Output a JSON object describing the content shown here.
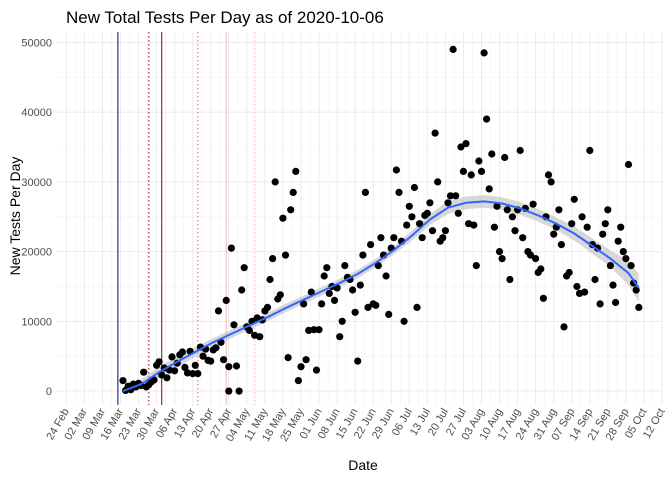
{
  "chart_data": {
    "type": "scatter",
    "title": "New Total Tests Per Day as of 2020-10-06",
    "xlabel": "Date",
    "ylabel": "New Tests Per Day",
    "xlim": [
      "2020-02-20",
      "2020-10-12"
    ],
    "ylim": [
      -2000,
      51500
    ],
    "grid": true,
    "legend": "none",
    "x_ticks": [
      {
        "date": "2020-02-24",
        "label": "24 Feb"
      },
      {
        "date": "2020-03-02",
        "label": "02 Mar"
      },
      {
        "date": "2020-03-09",
        "label": "09 Mar"
      },
      {
        "date": "2020-03-16",
        "label": "16 Mar"
      },
      {
        "date": "2020-03-23",
        "label": "23 Mar"
      },
      {
        "date": "2020-03-30",
        "label": "30 Mar"
      },
      {
        "date": "2020-04-06",
        "label": "06 Apr"
      },
      {
        "date": "2020-04-13",
        "label": "13 Apr"
      },
      {
        "date": "2020-04-20",
        "label": "20 Apr"
      },
      {
        "date": "2020-04-27",
        "label": "27 Apr"
      },
      {
        "date": "2020-05-04",
        "label": "04 May"
      },
      {
        "date": "2020-05-11",
        "label": "11 May"
      },
      {
        "date": "2020-05-18",
        "label": "18 May"
      },
      {
        "date": "2020-05-25",
        "label": "25 May"
      },
      {
        "date": "2020-06-01",
        "label": "01 Jun"
      },
      {
        "date": "2020-06-08",
        "label": "08 Jun"
      },
      {
        "date": "2020-06-15",
        "label": "15 Jun"
      },
      {
        "date": "2020-06-22",
        "label": "22 Jun"
      },
      {
        "date": "2020-06-29",
        "label": "29 Jun"
      },
      {
        "date": "2020-07-06",
        "label": "06 Jul"
      },
      {
        "date": "2020-07-13",
        "label": "13 Jul"
      },
      {
        "date": "2020-07-20",
        "label": "20 Jul"
      },
      {
        "date": "2020-07-27",
        "label": "27 Jul"
      },
      {
        "date": "2020-08-03",
        "label": "03 Aug"
      },
      {
        "date": "2020-08-10",
        "label": "10 Aug"
      },
      {
        "date": "2020-08-17",
        "label": "17 Aug"
      },
      {
        "date": "2020-08-24",
        "label": "24 Aug"
      },
      {
        "date": "2020-08-31",
        "label": "31 Aug"
      },
      {
        "date": "2020-09-07",
        "label": "07 Sep"
      },
      {
        "date": "2020-09-14",
        "label": "14 Sep"
      },
      {
        "date": "2020-09-21",
        "label": "21 Sep"
      },
      {
        "date": "2020-09-28",
        "label": "28 Sep"
      },
      {
        "date": "2020-10-05",
        "label": "05 Oct"
      },
      {
        "date": "2020-10-12",
        "label": "12 Oct"
      }
    ],
    "y_ticks": [
      {
        "value": 0,
        "label": "0"
      },
      {
        "value": 10000,
        "label": "10000"
      },
      {
        "value": 20000,
        "label": "20000"
      },
      {
        "value": 30000,
        "label": "30000"
      },
      {
        "value": 40000,
        "label": "40000"
      },
      {
        "value": 50000,
        "label": "50000"
      }
    ],
    "vlines": [
      {
        "date": "2020-03-15",
        "color": "#00008b",
        "style": "solid"
      },
      {
        "date": "2020-03-27",
        "color": "#8b0000",
        "style": "dotted"
      },
      {
        "date": "2020-04-01",
        "color": "#8b0000",
        "style": "solid"
      },
      {
        "date": "2020-04-15",
        "color": "#e06060",
        "style": "dotted"
      },
      {
        "date": "2020-04-26",
        "color": "#f2b8b8",
        "style": "solid"
      },
      {
        "date": "2020-05-07",
        "color": "#f2b8b8",
        "style": "dotted"
      }
    ],
    "points": [
      [
        "2020-03-17",
        1500
      ],
      [
        "2020-03-18",
        100
      ],
      [
        "2020-03-19",
        700
      ],
      [
        "2020-03-20",
        200
      ],
      [
        "2020-03-21",
        1000
      ],
      [
        "2020-03-22",
        600
      ],
      [
        "2020-03-23",
        1100
      ],
      [
        "2020-03-24",
        800
      ],
      [
        "2020-03-25",
        2700
      ],
      [
        "2020-03-26",
        600
      ],
      [
        "2020-03-27",
        900
      ],
      [
        "2020-03-28",
        1300
      ],
      [
        "2020-03-29",
        1600
      ],
      [
        "2020-03-30",
        3700
      ],
      [
        "2020-03-31",
        4200
      ],
      [
        "2020-04-01",
        2300
      ],
      [
        "2020-04-02",
        3300
      ],
      [
        "2020-04-03",
        1900
      ],
      [
        "2020-04-04",
        3000
      ],
      [
        "2020-04-05",
        4900
      ],
      [
        "2020-04-06",
        2900
      ],
      [
        "2020-04-07",
        4000
      ],
      [
        "2020-04-08",
        5200
      ],
      [
        "2020-04-09",
        5600
      ],
      [
        "2020-04-10",
        3400
      ],
      [
        "2020-04-11",
        2600
      ],
      [
        "2020-04-12",
        5700
      ],
      [
        "2020-04-13",
        2500
      ],
      [
        "2020-04-14",
        3700
      ],
      [
        "2020-04-15",
        2500
      ],
      [
        "2020-04-16",
        6300
      ],
      [
        "2020-04-17",
        5000
      ],
      [
        "2020-04-18",
        6000
      ],
      [
        "2020-04-19",
        4400
      ],
      [
        "2020-04-20",
        4300
      ],
      [
        "2020-04-21",
        5900
      ],
      [
        "2020-04-22",
        6200
      ],
      [
        "2020-04-23",
        11500
      ],
      [
        "2020-04-24",
        7000
      ],
      [
        "2020-04-25",
        4500
      ],
      [
        "2020-04-26",
        13000
      ],
      [
        "2020-04-27",
        0
      ],
      [
        "2020-04-27",
        3500
      ],
      [
        "2020-04-28",
        20500
      ],
      [
        "2020-04-29",
        9500
      ],
      [
        "2020-04-30",
        3600
      ],
      [
        "2020-05-01",
        0
      ],
      [
        "2020-05-02",
        14500
      ],
      [
        "2020-05-03",
        17700
      ],
      [
        "2020-05-04",
        9200
      ],
      [
        "2020-05-05",
        8700
      ],
      [
        "2020-05-06",
        10000
      ],
      [
        "2020-05-07",
        8000
      ],
      [
        "2020-05-08",
        10500
      ],
      [
        "2020-05-09",
        7800
      ],
      [
        "2020-05-10",
        10200
      ],
      [
        "2020-05-11",
        11500
      ],
      [
        "2020-05-12",
        12000
      ],
      [
        "2020-05-13",
        16000
      ],
      [
        "2020-05-14",
        19000
      ],
      [
        "2020-05-15",
        30000
      ],
      [
        "2020-05-16",
        13200
      ],
      [
        "2020-05-17",
        13800
      ],
      [
        "2020-05-18",
        24800
      ],
      [
        "2020-05-19",
        19500
      ],
      [
        "2020-05-20",
        4800
      ],
      [
        "2020-05-21",
        26000
      ],
      [
        "2020-05-22",
        28500
      ],
      [
        "2020-05-23",
        31500
      ],
      [
        "2020-05-24",
        1500
      ],
      [
        "2020-05-25",
        3500
      ],
      [
        "2020-05-26",
        12500
      ],
      [
        "2020-05-27",
        4500
      ],
      [
        "2020-05-28",
        8700
      ],
      [
        "2020-05-29",
        14200
      ],
      [
        "2020-05-30",
        8800
      ],
      [
        "2020-05-31",
        3000
      ],
      [
        "2020-06-01",
        8800
      ],
      [
        "2020-06-02",
        12500
      ],
      [
        "2020-06-03",
        16500
      ],
      [
        "2020-06-04",
        17700
      ],
      [
        "2020-06-05",
        14000
      ],
      [
        "2020-06-06",
        15000
      ],
      [
        "2020-06-07",
        13000
      ],
      [
        "2020-06-08",
        14800
      ],
      [
        "2020-06-09",
        7800
      ],
      [
        "2020-06-10",
        10000
      ],
      [
        "2020-06-11",
        18000
      ],
      [
        "2020-06-12",
        16300
      ],
      [
        "2020-06-13",
        16000
      ],
      [
        "2020-06-14",
        14500
      ],
      [
        "2020-06-15",
        11300
      ],
      [
        "2020-06-16",
        4300
      ],
      [
        "2020-06-17",
        15200
      ],
      [
        "2020-06-18",
        19500
      ],
      [
        "2020-06-19",
        28500
      ],
      [
        "2020-06-20",
        12000
      ],
      [
        "2020-06-21",
        21000
      ],
      [
        "2020-06-22",
        12500
      ],
      [
        "2020-06-23",
        12300
      ],
      [
        "2020-06-24",
        18000
      ],
      [
        "2020-06-25",
        22000
      ],
      [
        "2020-06-26",
        19500
      ],
      [
        "2020-06-27",
        16500
      ],
      [
        "2020-06-28",
        11000
      ],
      [
        "2020-06-29",
        20500
      ],
      [
        "2020-06-30",
        22000
      ],
      [
        "2020-07-01",
        31700
      ],
      [
        "2020-07-02",
        28500
      ],
      [
        "2020-07-03",
        21500
      ],
      [
        "2020-07-04",
        10000
      ],
      [
        "2020-07-05",
        23800
      ],
      [
        "2020-07-06",
        26500
      ],
      [
        "2020-07-07",
        25000
      ],
      [
        "2020-07-08",
        29200
      ],
      [
        "2020-07-09",
        12000
      ],
      [
        "2020-07-10",
        24000
      ],
      [
        "2020-07-11",
        22000
      ],
      [
        "2020-07-12",
        25200
      ],
      [
        "2020-07-13",
        25500
      ],
      [
        "2020-07-14",
        27000
      ],
      [
        "2020-07-15",
        23000
      ],
      [
        "2020-07-16",
        37000
      ],
      [
        "2020-07-17",
        30000
      ],
      [
        "2020-07-18",
        21500
      ],
      [
        "2020-07-19",
        22000
      ],
      [
        "2020-07-20",
        23000
      ],
      [
        "2020-07-21",
        27000
      ],
      [
        "2020-07-22",
        28000
      ],
      [
        "2020-07-23",
        49000
      ],
      [
        "2020-07-24",
        28000
      ],
      [
        "2020-07-25",
        25500
      ],
      [
        "2020-07-26",
        35000
      ],
      [
        "2020-07-27",
        31500
      ],
      [
        "2020-07-28",
        35500
      ],
      [
        "2020-07-29",
        24000
      ],
      [
        "2020-07-30",
        31000
      ],
      [
        "2020-07-31",
        23800
      ],
      [
        "2020-08-01",
        18000
      ],
      [
        "2020-08-02",
        33000
      ],
      [
        "2020-08-03",
        31500
      ],
      [
        "2020-08-04",
        48500
      ],
      [
        "2020-08-05",
        39000
      ],
      [
        "2020-08-06",
        29000
      ],
      [
        "2020-08-07",
        34000
      ],
      [
        "2020-08-08",
        23500
      ],
      [
        "2020-08-09",
        26500
      ],
      [
        "2020-08-10",
        20000
      ],
      [
        "2020-08-11",
        19000
      ],
      [
        "2020-08-12",
        33500
      ],
      [
        "2020-08-13",
        26000
      ],
      [
        "2020-08-14",
        16000
      ],
      [
        "2020-08-15",
        25000
      ],
      [
        "2020-08-16",
        23000
      ],
      [
        "2020-08-17",
        26000
      ],
      [
        "2020-08-18",
        34500
      ],
      [
        "2020-08-19",
        22000
      ],
      [
        "2020-08-20",
        26200
      ],
      [
        "2020-08-21",
        20000
      ],
      [
        "2020-08-22",
        19500
      ],
      [
        "2020-08-23",
        26800
      ],
      [
        "2020-08-24",
        19000
      ],
      [
        "2020-08-25",
        17000
      ],
      [
        "2020-08-26",
        17500
      ],
      [
        "2020-08-27",
        13300
      ],
      [
        "2020-08-28",
        25000
      ],
      [
        "2020-08-29",
        31000
      ],
      [
        "2020-08-30",
        30000
      ],
      [
        "2020-08-31",
        22500
      ],
      [
        "2020-09-01",
        23500
      ],
      [
        "2020-09-02",
        26000
      ],
      [
        "2020-09-03",
        21000
      ],
      [
        "2020-09-04",
        9200
      ],
      [
        "2020-09-05",
        16500
      ],
      [
        "2020-09-06",
        17000
      ],
      [
        "2020-09-07",
        24000
      ],
      [
        "2020-09-08",
        27500
      ],
      [
        "2020-09-09",
        15000
      ],
      [
        "2020-09-10",
        14000
      ],
      [
        "2020-09-11",
        25000
      ],
      [
        "2020-09-12",
        14200
      ],
      [
        "2020-09-13",
        23500
      ],
      [
        "2020-09-14",
        34500
      ],
      [
        "2020-09-15",
        21000
      ],
      [
        "2020-09-16",
        16000
      ],
      [
        "2020-09-17",
        20500
      ],
      [
        "2020-09-18",
        12500
      ],
      [
        "2020-09-19",
        22500
      ],
      [
        "2020-09-20",
        24000
      ],
      [
        "2020-09-21",
        26000
      ],
      [
        "2020-09-22",
        18000
      ],
      [
        "2020-09-23",
        15200
      ],
      [
        "2020-09-24",
        12700
      ],
      [
        "2020-09-25",
        21500
      ],
      [
        "2020-09-26",
        23500
      ],
      [
        "2020-09-27",
        20000
      ],
      [
        "2020-09-28",
        19000
      ],
      [
        "2020-09-29",
        32500
      ],
      [
        "2020-09-30",
        18000
      ],
      [
        "2020-10-01",
        15500
      ],
      [
        "2020-10-02",
        14500
      ],
      [
        "2020-10-03",
        12000
      ]
    ],
    "smooth_trend": {
      "color": "#3366ff",
      "band_color": "#bebebe",
      "points": [
        [
          "2020-03-17",
          0,
          -400,
          400
        ],
        [
          "2020-03-24",
          1000,
          300,
          1700
        ],
        [
          "2020-03-31",
          2700,
          1900,
          3500
        ],
        [
          "2020-04-07",
          4200,
          3400,
          5000
        ],
        [
          "2020-04-14",
          5600,
          4900,
          6300
        ],
        [
          "2020-04-21",
          7000,
          6400,
          7600
        ],
        [
          "2020-04-28",
          8200,
          7600,
          8800
        ],
        [
          "2020-05-05",
          9400,
          8800,
          10000
        ],
        [
          "2020-05-12",
          10600,
          10000,
          11200
        ],
        [
          "2020-05-19",
          11900,
          11300,
          12500
        ],
        [
          "2020-05-26",
          13100,
          12500,
          13700
        ],
        [
          "2020-06-02",
          14300,
          13700,
          14900
        ],
        [
          "2020-06-09",
          15500,
          14900,
          16100
        ],
        [
          "2020-06-16",
          16800,
          16200,
          17400
        ],
        [
          "2020-06-23",
          18400,
          17800,
          19000
        ],
        [
          "2020-06-30",
          20200,
          19600,
          20800
        ],
        [
          "2020-07-07",
          22300,
          21600,
          23000
        ],
        [
          "2020-07-14",
          24600,
          23800,
          25400
        ],
        [
          "2020-07-21",
          26300,
          25400,
          27200
        ],
        [
          "2020-07-28",
          27000,
          26100,
          27900
        ],
        [
          "2020-08-04",
          27200,
          26300,
          28100
        ],
        [
          "2020-08-11",
          26900,
          26000,
          27800
        ],
        [
          "2020-08-18",
          26200,
          25300,
          27100
        ],
        [
          "2020-08-25",
          25200,
          24300,
          26100
        ],
        [
          "2020-09-01",
          24000,
          23100,
          24900
        ],
        [
          "2020-09-08",
          22600,
          21600,
          23600
        ],
        [
          "2020-09-15",
          20800,
          19700,
          21900
        ],
        [
          "2020-09-22",
          19000,
          17800,
          20200
        ],
        [
          "2020-09-29",
          16900,
          15200,
          18600
        ],
        [
          "2020-10-03",
          14800,
          12800,
          16800
        ]
      ]
    }
  }
}
